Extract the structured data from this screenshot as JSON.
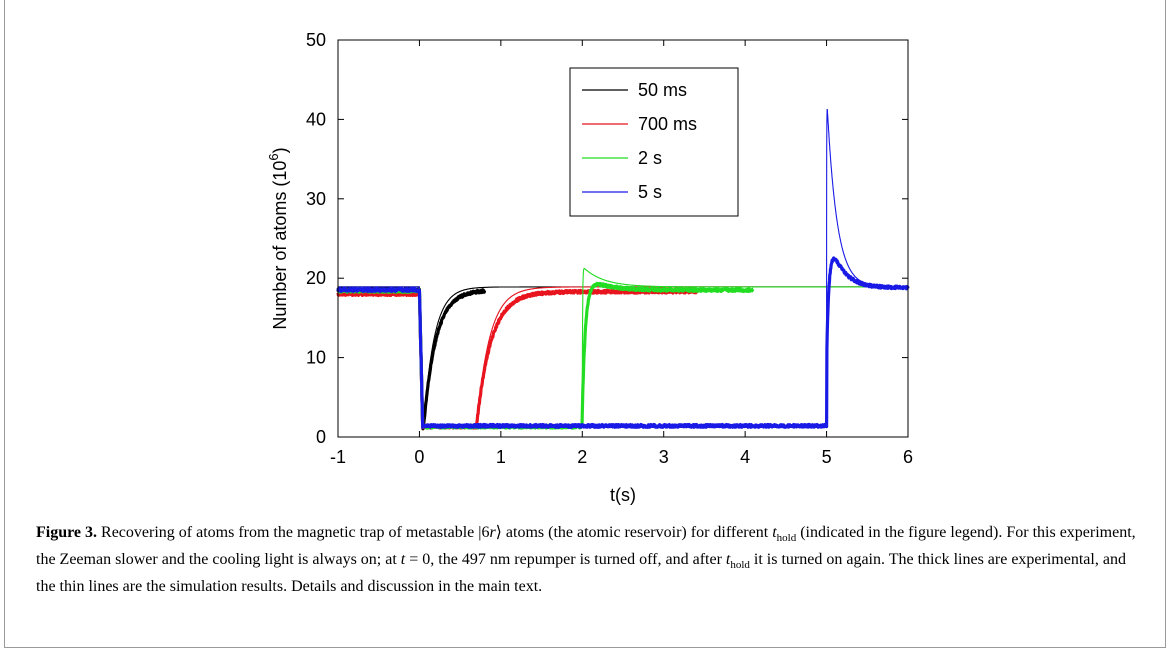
{
  "chart_data": {
    "type": "line",
    "title": "",
    "xlabel": "t(s)",
    "ylabel": "Number of atoms (10",
    "ylabel_sup": "6",
    "ylabel_end": ")",
    "xlim": [
      -1,
      6
    ],
    "ylim": [
      0,
      50
    ],
    "xticks": [
      -1,
      0,
      1,
      2,
      3,
      4,
      5,
      6
    ],
    "xtick_labels": [
      "-1",
      "0",
      "1",
      "2",
      "3",
      "4",
      "5",
      "6"
    ],
    "yticks": [
      0,
      10,
      20,
      30,
      40,
      50
    ],
    "ytick_labels": [
      "0",
      "10",
      "20",
      "30",
      "40",
      "50"
    ],
    "grid": false,
    "legend_position": "top-center",
    "series": [
      {
        "name": "50 ms",
        "color": "#000000",
        "t_hold": 0.05,
        "experiment": {
          "baseline": 18.5,
          "floor": 1.2,
          "recover_level": 18.5,
          "tau": 0.15,
          "overshoot": 0,
          "decay": 0.2,
          "end": 0.8
        },
        "simulation": {
          "baseline": 18.9,
          "floor": 1.2,
          "recover_level": 18.9,
          "tau": 0.13,
          "overshoot": 0,
          "decay": 0.2,
          "end": 6.0
        }
      },
      {
        "name": "700 ms",
        "color": "#e8141e",
        "t_hold": 0.7,
        "experiment": {
          "baseline": 18.0,
          "floor": 1.3,
          "recover_level": 18.3,
          "tau": 0.18,
          "overshoot": 0,
          "decay": 0.2,
          "end": 3.4
        },
        "simulation": {
          "baseline": 18.9,
          "floor": 1.2,
          "recover_level": 18.9,
          "tau": 0.16,
          "overshoot": 0,
          "decay": 0.2,
          "end": 6.0
        }
      },
      {
        "name": "2 s",
        "color": "#22dd22",
        "t_hold": 2.0,
        "experiment": {
          "baseline": 18.4,
          "floor": 1.3,
          "recover_level": 18.5,
          "tau": 0.04,
          "overshoot": 1.8,
          "decay": 0.25,
          "end": 4.1
        },
        "simulation": {
          "baseline": 18.9,
          "floor": 1.2,
          "recover_level": 18.9,
          "tau": 0.004,
          "overshoot": 2.6,
          "decay": 0.25,
          "end": 6.0
        }
      },
      {
        "name": "5 s",
        "color": "#1a1ae6",
        "t_hold": 5.0,
        "experiment": {
          "baseline": 18.5,
          "floor": 1.4,
          "recover_level": 18.8,
          "tau": 0.03,
          "overshoot": 7.8,
          "decay": 0.16,
          "end": 6.0
        },
        "simulation": {
          "baseline": 18.9,
          "floor": 1.2,
          "recover_level": 18.9,
          "tau": 0.002,
          "overshoot": 24.3,
          "decay": 0.12,
          "end": 6.0
        }
      }
    ]
  },
  "caption": {
    "label": "Figure 3.",
    "segments": [
      {
        "t": " Recovering of atoms from the magnetic trap of metastable |6"
      },
      {
        "t": "r",
        "i": true
      },
      {
        "t": "⟩ atoms (the atomic reservoir) for different "
      },
      {
        "t": "t",
        "i": true
      },
      {
        "t": "hold",
        "sub": true
      },
      {
        "t": " (indicated in the figure legend). For this experiment, the Zeeman slower and the cooling light is always on; at "
      },
      {
        "t": "t",
        "i": true
      },
      {
        "t": " = 0, the 497 nm repumper is turned off, and after "
      },
      {
        "t": "t",
        "i": true
      },
      {
        "t": "hold",
        "sub": true
      },
      {
        "t": " it is turned on again. The thick lines are experimental, and the thin lines are the simulation results. Details and discussion in the main text."
      }
    ]
  }
}
